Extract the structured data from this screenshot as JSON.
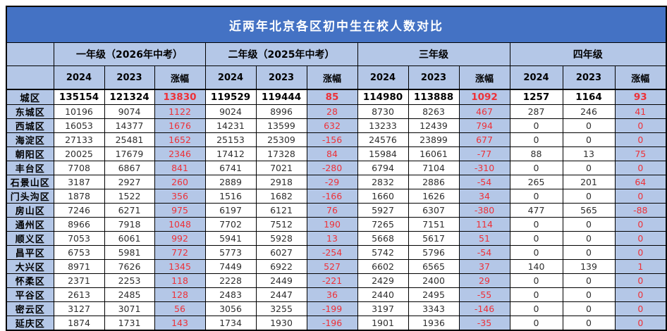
{
  "title": "近两年北京各区初中生在校人数对比",
  "colors": {
    "title_bg": "#4472C4",
    "header_bg": "#B4C7E7",
    "diff_text": "#ED3138"
  },
  "chart_data": {
    "type": "table",
    "title": "近两年北京各区初中生在校人数对比",
    "column_groups": [
      {
        "label": "一年级（2026年中考）"
      },
      {
        "label": "二年级（2025年中考）"
      },
      {
        "label": "三年级"
      },
      {
        "label": "四年级"
      }
    ],
    "sub_columns": [
      "2024",
      "2023",
      "涨幅"
    ],
    "rows": [
      {
        "district": "城区",
        "total": true,
        "values": [
          "135154",
          "121324",
          "13830",
          "119529",
          "119444",
          "85",
          "114980",
          "113888",
          "1092",
          "1257",
          "1164",
          "93"
        ]
      },
      {
        "district": "东城区",
        "total": false,
        "values": [
          "10196",
          "9074",
          "1122",
          "9024",
          "8996",
          "28",
          "8730",
          "8263",
          "467",
          "287",
          "246",
          "41"
        ]
      },
      {
        "district": "西城区",
        "total": false,
        "values": [
          "16053",
          "14377",
          "1676",
          "14231",
          "13599",
          "632",
          "13233",
          "12439",
          "794",
          "0",
          "0",
          "0"
        ]
      },
      {
        "district": "海淀区",
        "total": false,
        "values": [
          "27133",
          "25481",
          "1652",
          "25153",
          "25309",
          "-156",
          "24576",
          "23899",
          "677",
          "0",
          "0",
          "0"
        ]
      },
      {
        "district": "朝阳区",
        "total": false,
        "values": [
          "20025",
          "17679",
          "2346",
          "17412",
          "17328",
          "84",
          "15984",
          "16061",
          "-77",
          "88",
          "13",
          "75"
        ]
      },
      {
        "district": "丰台区",
        "total": false,
        "values": [
          "7708",
          "6867",
          "841",
          "6741",
          "7021",
          "-280",
          "6794",
          "7104",
          "-310",
          "0",
          "0",
          "0"
        ]
      },
      {
        "district": "石景山区",
        "total": false,
        "values": [
          "3187",
          "2927",
          "260",
          "2889",
          "2918",
          "-29",
          "2832",
          "2886",
          "-54",
          "265",
          "201",
          "64"
        ]
      },
      {
        "district": "门头沟区",
        "total": false,
        "values": [
          "1878",
          "1522",
          "356",
          "1516",
          "1682",
          "-166",
          "1660",
          "1626",
          "34",
          "0",
          "0",
          "0"
        ]
      },
      {
        "district": "房山区",
        "total": false,
        "values": [
          "7246",
          "6271",
          "975",
          "6197",
          "6121",
          "76",
          "5927",
          "6307",
          "-380",
          "477",
          "565",
          "-88"
        ]
      },
      {
        "district": "通州区",
        "total": false,
        "values": [
          "8966",
          "7918",
          "1048",
          "7702",
          "7512",
          "190",
          "7265",
          "7151",
          "114",
          "0",
          "0",
          "0"
        ]
      },
      {
        "district": "顺义区",
        "total": false,
        "values": [
          "7053",
          "6061",
          "992",
          "5941",
          "5928",
          "13",
          "5668",
          "5617",
          "51",
          "0",
          "0",
          "0"
        ]
      },
      {
        "district": "昌平区",
        "total": false,
        "values": [
          "6753",
          "5981",
          "772",
          "5773",
          "6027",
          "-254",
          "5742",
          "5796",
          "-54",
          "0",
          "0",
          "0"
        ]
      },
      {
        "district": "大兴区",
        "total": false,
        "values": [
          "8971",
          "7626",
          "1345",
          "7449",
          "6922",
          "527",
          "6602",
          "6565",
          "37",
          "140",
          "139",
          "1"
        ]
      },
      {
        "district": "怀柔区",
        "total": false,
        "values": [
          "2371",
          "2253",
          "118",
          "2228",
          "2449",
          "-221",
          "2429",
          "2400",
          "29",
          "0",
          "0",
          "0"
        ]
      },
      {
        "district": "平谷区",
        "total": false,
        "values": [
          "2613",
          "2485",
          "128",
          "2483",
          "2447",
          "36",
          "2440",
          "2495",
          "-55",
          "0",
          "0",
          "0"
        ]
      },
      {
        "district": "密云区",
        "total": false,
        "values": [
          "3127",
          "3071",
          "56",
          "3056",
          "3255",
          "-199",
          "3197",
          "3343",
          "-146",
          "0",
          "0",
          "0"
        ]
      },
      {
        "district": "延庆区",
        "total": false,
        "values": [
          "1874",
          "1731",
          "143",
          "1734",
          "1930",
          "-196",
          "1901",
          "1936",
          "-35",
          "0",
          "0",
          "0"
        ]
      }
    ]
  }
}
